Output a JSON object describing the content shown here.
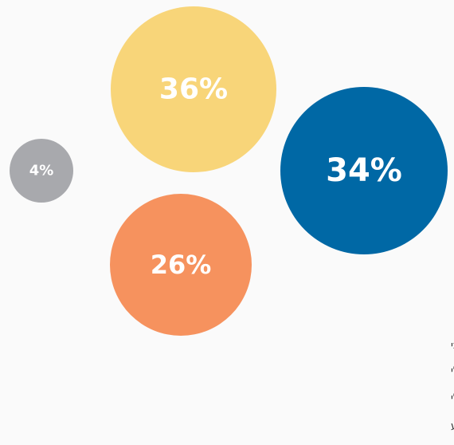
{
  "chart_data": {
    "type": "bubble",
    "categories": [
      "חיובי מאוד או די חיובי",
      "ניטרלי",
      "שלילי מאוד או די שלילי",
      "לא יודע"
    ],
    "values": [
      34,
      36,
      26,
      4
    ],
    "value_labels": [
      "34%",
      "36%",
      "26%",
      "4%"
    ],
    "colors": [
      "#0068a5",
      "#f8d579",
      "#f6925e",
      "#a8a9ad"
    ],
    "legend_entries": [
      "חיובי מאוד או די חיובי",
      "ניטרלי",
      "שלילי מאוד או די שלילי",
      "לא יודע"
    ],
    "legend_placement": "bottom-right"
  }
}
